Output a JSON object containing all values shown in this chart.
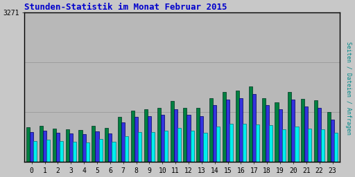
{
  "title": "Stunden-Statistik im Monat Februar 2015",
  "ylabel": "Seiten / Dateien / Anfragen",
  "xlabel_ticks": [
    "0",
    "1",
    "2",
    "3",
    "4",
    "5",
    "6",
    "7",
    "8",
    "9",
    "10",
    "11",
    "12",
    "13",
    "14",
    "15",
    "16",
    "17",
    "18",
    "19",
    "20",
    "21",
    "22",
    "23"
  ],
  "ytick_label": "3271",
  "background_color": "#c8c8c8",
  "plot_bg_color": "#b8b8b8",
  "border_color": "#000000",
  "title_color": "#0000cc",
  "ylabel_color": "#008888",
  "ytick_color": "#000000",
  "xtick_color": "#000000",
  "color_green": "#008040",
  "color_blue": "#3333dd",
  "color_cyan": "#00eeee",
  "seiten": [
    760,
    790,
    730,
    710,
    700,
    790,
    740,
    990,
    1130,
    1150,
    1190,
    1340,
    1190,
    1180,
    1400,
    1530,
    1570,
    1660,
    1400,
    1300,
    1530,
    1380,
    1350,
    1100
  ],
  "dateien": [
    650,
    680,
    640,
    620,
    610,
    670,
    630,
    870,
    990,
    1010,
    1040,
    1160,
    1040,
    1010,
    1250,
    1360,
    1400,
    1490,
    1250,
    1150,
    1360,
    1210,
    1180,
    920
  ],
  "anfragen": [
    460,
    490,
    460,
    440,
    430,
    500,
    440,
    570,
    650,
    650,
    680,
    750,
    680,
    640,
    780,
    840,
    840,
    820,
    800,
    720,
    780,
    730,
    720,
    640
  ],
  "ylim": [
    0,
    3271
  ],
  "yticks": [
    3271
  ],
  "figsize": [
    5.12,
    2.56
  ],
  "dpi": 100,
  "bar_width": 0.27
}
